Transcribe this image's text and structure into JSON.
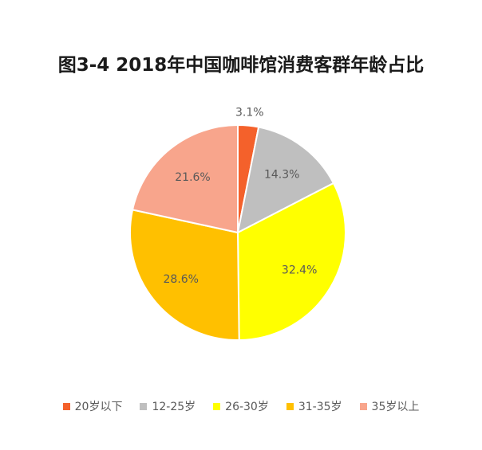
{
  "chart_data": {
    "type": "pie",
    "title": "图3-4 2018年中国咖啡馆消费客群年龄占比",
    "slices": [
      {
        "label": "20岁以下",
        "value": 3.1,
        "display": "3.1%",
        "color": "#f4612b"
      },
      {
        "label": "12-25岁",
        "value": 14.3,
        "display": "14.3%",
        "color": "#bfbfbf"
      },
      {
        "label": "26-30岁",
        "value": 32.4,
        "display": "32.4%",
        "color": "#ffff00"
      },
      {
        "label": "31-35岁",
        "value": 28.6,
        "display": "28.6%",
        "color": "#ffc000"
      },
      {
        "label": "35岁以上",
        "value": 21.6,
        "display": "21.6%",
        "color": "#f8a58c"
      }
    ],
    "legend_position": "bottom"
  }
}
